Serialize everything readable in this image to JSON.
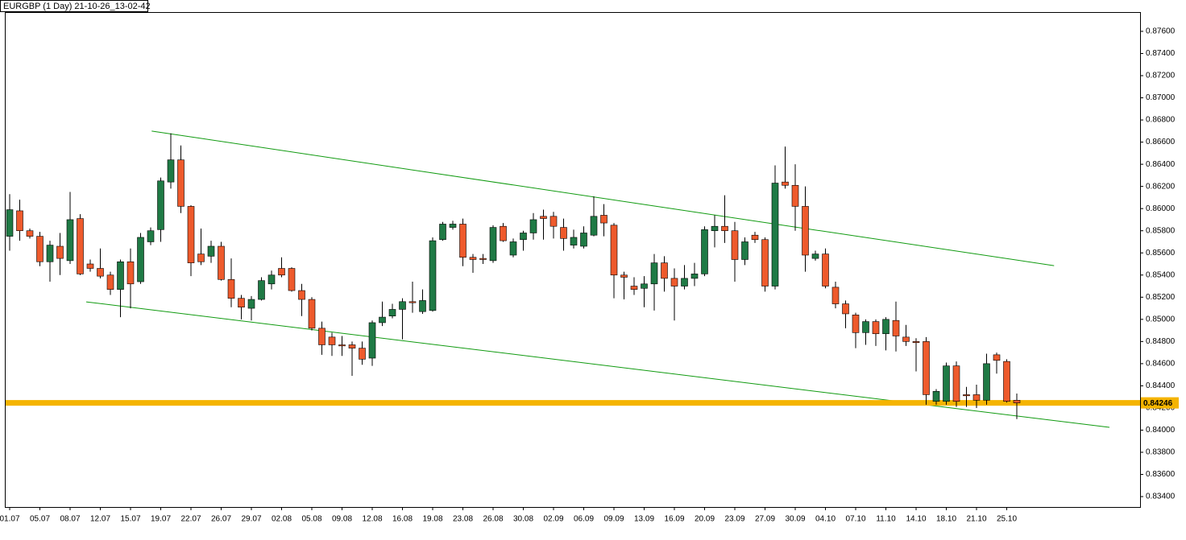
{
  "chart_data": {
    "type": "candlestick",
    "title": "EURGBP (1 Day) 21-10-26_13-02-42",
    "categories": [
      "01.07",
      null,
      null,
      "05.07",
      null,
      null,
      "08.07",
      null,
      null,
      "12.07",
      null,
      null,
      "15.07",
      null,
      null,
      "19.07",
      null,
      null,
      "22.07",
      null,
      null,
      "26.07",
      null,
      null,
      "29.07",
      null,
      null,
      "02.08",
      null,
      null,
      "05.08",
      null,
      null,
      "09.08",
      null,
      null,
      "12.08",
      null,
      null,
      "16.08",
      null,
      null,
      "19.08",
      null,
      null,
      "23.08",
      null,
      null,
      "26.08",
      null,
      null,
      "30.08",
      null,
      null,
      "02.09",
      null,
      null,
      "06.09",
      null,
      null,
      "09.09",
      null,
      null,
      "13.09",
      null,
      null,
      "16.09",
      null,
      null,
      "20.09",
      null,
      null,
      "23.09",
      null,
      null,
      "27.09",
      null,
      null,
      "30.09",
      null,
      null,
      "04.10",
      null,
      null,
      "07.10",
      null,
      null,
      "11.10",
      null,
      null,
      "14.10",
      null,
      null,
      "18.10",
      null,
      null,
      "21.10",
      null,
      null,
      "25.10",
      null
    ],
    "open": [
      0.8575,
      0.8598,
      0.858,
      0.8575,
      0.8552,
      0.8566,
      0.8553,
      0.8591,
      0.855,
      0.8546,
      0.854,
      0.8527,
      0.8552,
      0.8534,
      0.857,
      0.8581,
      0.8624,
      0.8644,
      0.8602,
      0.8559,
      0.8557,
      0.8566,
      0.8536,
      0.8519,
      0.851,
      0.8518,
      0.8532,
      0.8546,
      0.8546,
      0.8526,
      0.8518,
      0.8492,
      0.8484,
      0.8477,
      0.8477,
      0.8474,
      0.8465,
      0.8497,
      0.8503,
      0.8509,
      0.8516,
      0.8507,
      0.8508,
      0.8572,
      0.8583,
      0.8586,
      0.8556,
      0.8555,
      0.8553,
      0.8584,
      0.8558,
      0.8572,
      0.8578,
      0.8593,
      0.8593,
      0.8583,
      0.8567,
      0.8566,
      0.8576,
      0.8594,
      0.8585,
      0.854,
      0.853,
      0.8528,
      0.8532,
      0.8551,
      0.8537,
      0.853,
      0.8537,
      0.8541,
      0.858,
      0.8584,
      0.858,
      0.8554,
      0.8576,
      0.8572,
      0.853,
      0.8624,
      0.8621,
      0.8602,
      0.8555,
      0.8559,
      0.8529,
      0.8514,
      0.8504,
      0.8488,
      0.8498,
      0.8487,
      0.8499,
      0.8484,
      0.848,
      0.848,
      0.8426,
      0.8426,
      0.8458,
      0.8432,
      0.8432,
      0.8427,
      0.8468,
      0.8462,
      0.8427
    ],
    "high": [
      0.8613,
      0.8608,
      0.8582,
      0.8579,
      0.8571,
      0.8578,
      0.8615,
      0.8595,
      0.8554,
      0.8564,
      0.8543,
      0.8554,
      0.8564,
      0.8578,
      0.8583,
      0.8628,
      0.8668,
      0.8657,
      0.8603,
      0.8582,
      0.8571,
      0.857,
      0.8555,
      0.8522,
      0.8521,
      0.8538,
      0.8544,
      0.8556,
      0.8547,
      0.8532,
      0.852,
      0.8498,
      0.8488,
      0.8485,
      0.848,
      0.848,
      0.8499,
      0.8516,
      0.8514,
      0.8519,
      0.8534,
      0.8527,
      0.8574,
      0.8588,
      0.8589,
      0.8591,
      0.8559,
      0.8559,
      0.8585,
      0.8587,
      0.8573,
      0.858,
      0.8596,
      0.8599,
      0.8597,
      0.8591,
      0.8581,
      0.8584,
      0.8611,
      0.8604,
      0.8587,
      0.8543,
      0.8538,
      0.8539,
      0.8559,
      0.8557,
      0.8546,
      0.8549,
      0.8551,
      0.8584,
      0.8594,
      0.8612,
      0.8588,
      0.8574,
      0.8579,
      0.8574,
      0.8639,
      0.8656,
      0.864,
      0.862,
      0.8562,
      0.8564,
      0.8534,
      0.8517,
      0.8506,
      0.85,
      0.85,
      0.8502,
      0.8516,
      0.8495,
      0.8483,
      0.8484,
      0.8437,
      0.8461,
      0.8462,
      0.8439,
      0.8441,
      0.8469,
      0.847,
      0.8464,
      0.8433
    ],
    "low": [
      0.8562,
      0.8571,
      0.8573,
      0.8548,
      0.8534,
      0.854,
      0.855,
      0.854,
      0.8543,
      0.8537,
      0.8522,
      0.8502,
      0.851,
      0.8532,
      0.8567,
      0.857,
      0.8618,
      0.8596,
      0.8539,
      0.8549,
      0.8551,
      0.8535,
      0.8511,
      0.85,
      0.8499,
      0.8517,
      0.8527,
      0.8538,
      0.8525,
      0.8503,
      0.849,
      0.8468,
      0.8467,
      0.8467,
      0.8449,
      0.8459,
      0.8458,
      0.8494,
      0.8501,
      0.8482,
      0.8506,
      0.8505,
      0.8507,
      0.8571,
      0.8581,
      0.8548,
      0.8542,
      0.855,
      0.8551,
      0.857,
      0.8556,
      0.8562,
      0.8572,
      0.8572,
      0.8573,
      0.8562,
      0.8564,
      0.8564,
      0.8575,
      0.8575,
      0.8519,
      0.8518,
      0.8522,
      0.8511,
      0.8508,
      0.8525,
      0.8499,
      0.8527,
      0.853,
      0.8539,
      0.8565,
      0.8569,
      0.8534,
      0.8549,
      0.8569,
      0.8525,
      0.8527,
      0.8618,
      0.858,
      0.8543,
      0.8553,
      0.8528,
      0.851,
      0.8492,
      0.8474,
      0.8477,
      0.8476,
      0.8472,
      0.8471,
      0.8476,
      0.8453,
      0.8423,
      0.8423,
      0.8423,
      0.8421,
      0.8421,
      0.842,
      0.8423,
      0.8451,
      0.8425,
      0.841
    ],
    "close": [
      0.8599,
      0.858,
      0.8575,
      0.8552,
      0.8567,
      0.8555,
      0.859,
      0.8541,
      0.8546,
      0.8539,
      0.8527,
      0.8552,
      0.8532,
      0.8574,
      0.858,
      0.8625,
      0.8644,
      0.8602,
      0.8551,
      0.8552,
      0.8566,
      0.8536,
      0.8519,
      0.8511,
      0.8518,
      0.8535,
      0.854,
      0.854,
      0.8526,
      0.8518,
      0.8492,
      0.8477,
      0.8477,
      0.8476,
      0.8474,
      0.8464,
      0.8497,
      0.8502,
      0.8509,
      0.8516,
      0.8515,
      0.8517,
      0.8571,
      0.8586,
      0.8586,
      0.8556,
      0.8554,
      0.8554,
      0.8583,
      0.8571,
      0.857,
      0.8578,
      0.859,
      0.8591,
      0.8584,
      0.8573,
      0.8574,
      0.8578,
      0.8593,
      0.8587,
      0.854,
      0.8538,
      0.8527,
      0.8532,
      0.8551,
      0.8537,
      0.853,
      0.8537,
      0.8541,
      0.8581,
      0.8584,
      0.858,
      0.8554,
      0.857,
      0.8572,
      0.853,
      0.8623,
      0.8621,
      0.8602,
      0.8558,
      0.8559,
      0.853,
      0.8514,
      0.8505,
      0.8488,
      0.8498,
      0.8487,
      0.85,
      0.8485,
      0.848,
      0.8479,
      0.8432,
      0.8435,
      0.8458,
      0.8426,
      0.8431,
      0.8427,
      0.846,
      0.8463,
      0.8426,
      0.84246
    ],
    "last_price_label": "0.84246",
    "up_color": "#1f7a45",
    "down_color": "#ee5a2c",
    "price_line_color": "#f5b400",
    "trendline_color": "#109a10",
    "trendlines": [
      {
        "x": [
          14.1,
          103.7
        ],
        "y": [
          0.867,
          0.85485
        ]
      },
      {
        "x": [
          7.6,
          109.2
        ],
        "y": [
          0.85158,
          0.84025
        ]
      }
    ],
    "ylim": [
      0.83306,
      0.87774
    ],
    "yticks": [
      {
        "value": 0.876,
        "label": "0.87600"
      },
      {
        "value": 0.874,
        "label": "0.87400"
      },
      {
        "value": 0.872,
        "label": "0.87200"
      },
      {
        "value": 0.87,
        "label": "0.87000"
      },
      {
        "value": 0.868,
        "label": "0.86800"
      },
      {
        "value": 0.866,
        "label": "0.86600"
      },
      {
        "value": 0.864,
        "label": "0.86400"
      },
      {
        "value": 0.862,
        "label": "0.86200"
      },
      {
        "value": 0.86,
        "label": "0.86000"
      },
      {
        "value": 0.858,
        "label": "0.85800"
      },
      {
        "value": 0.856,
        "label": "0.85600"
      },
      {
        "value": 0.854,
        "label": "0.85400"
      },
      {
        "value": 0.852,
        "label": "0.85200"
      },
      {
        "value": 0.85,
        "label": "0.85000"
      },
      {
        "value": 0.848,
        "label": "0.84800"
      },
      {
        "value": 0.846,
        "label": "0.84600"
      },
      {
        "value": 0.844,
        "label": "0.84400"
      },
      {
        "value": 0.842,
        "label": "0.84200"
      },
      {
        "value": 0.84,
        "label": "0.84000"
      },
      {
        "value": 0.838,
        "label": "0.83800"
      },
      {
        "value": 0.836,
        "label": "0.83600"
      },
      {
        "value": 0.834,
        "label": "0.83400"
      }
    ]
  }
}
